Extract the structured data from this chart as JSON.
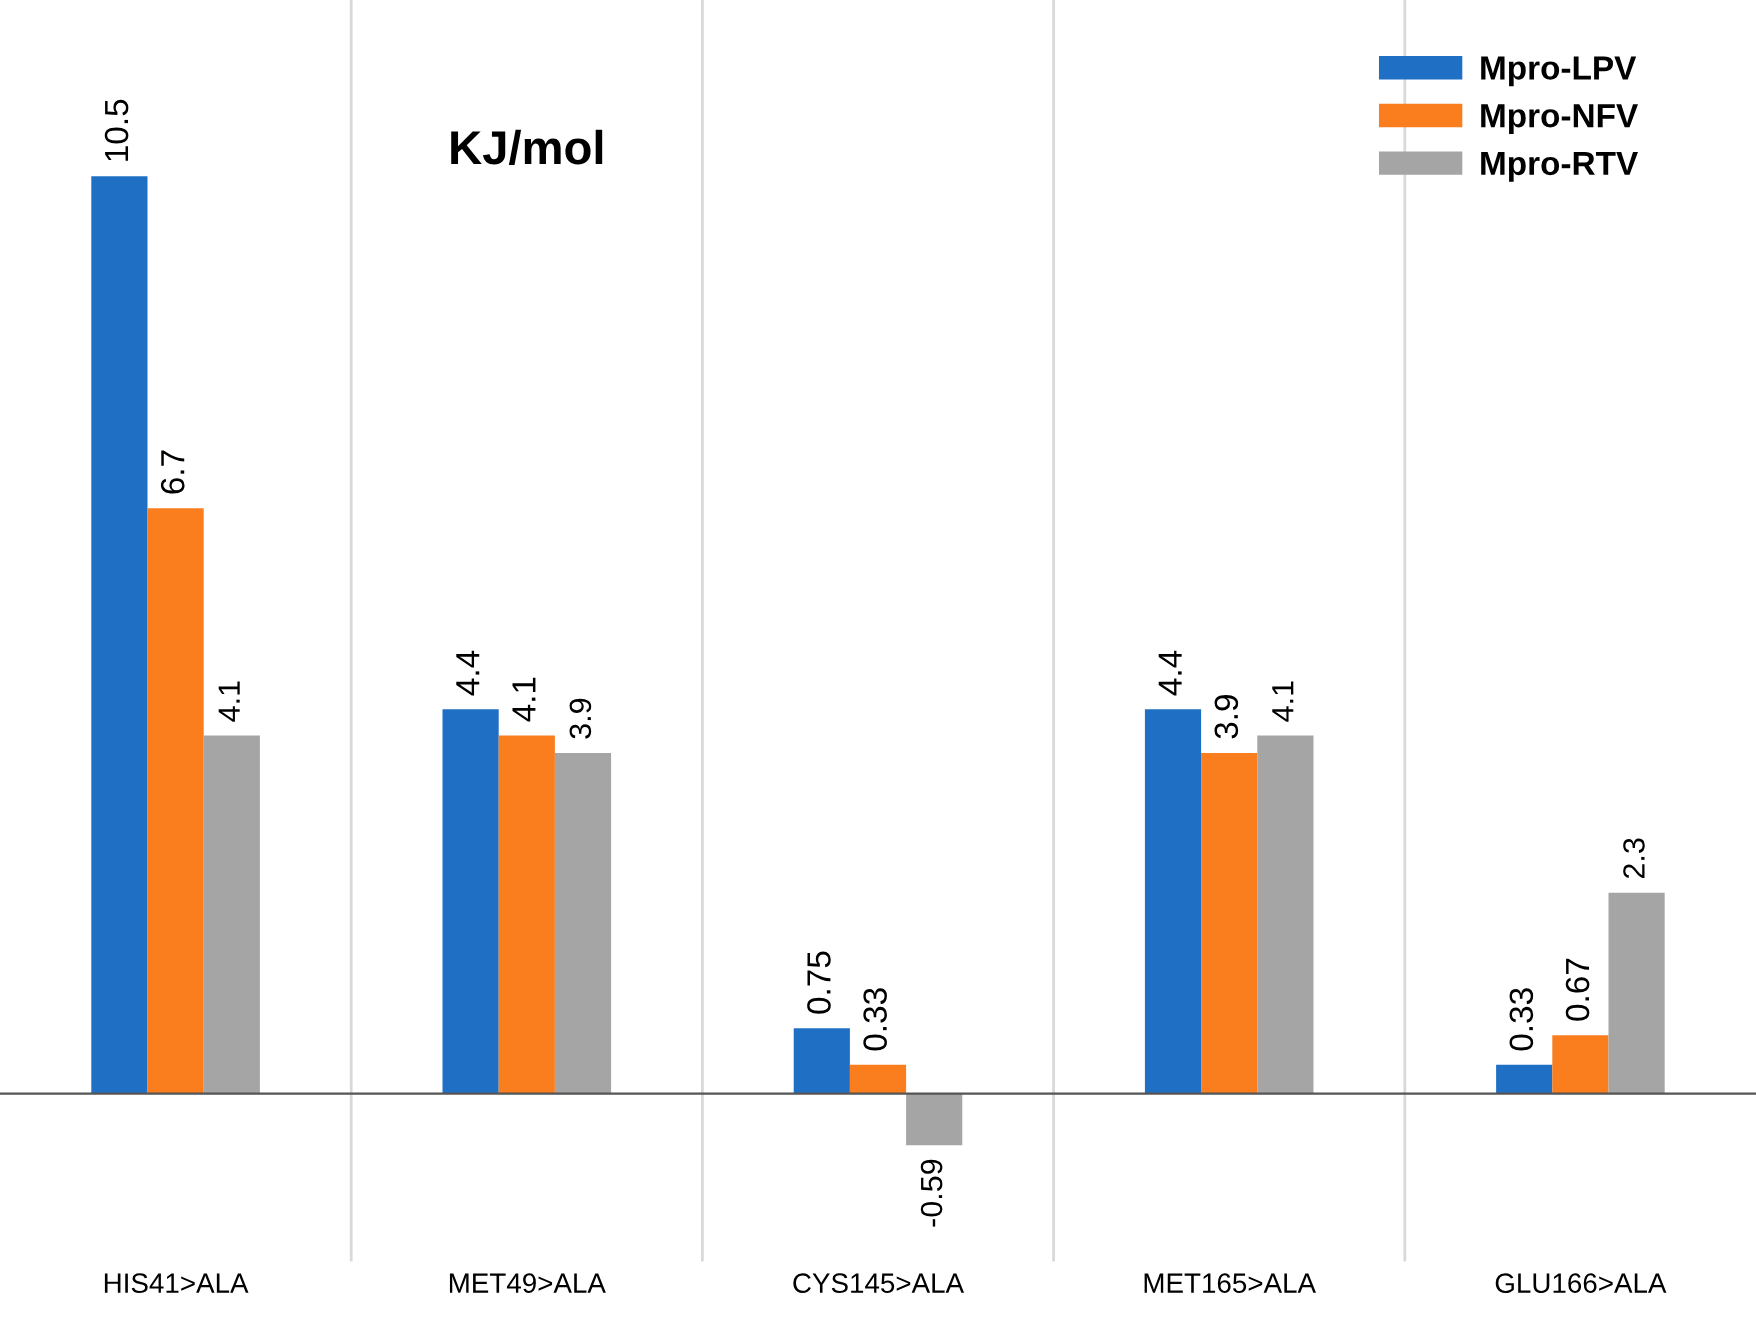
{
  "chart_data": {
    "type": "bar",
    "categories": [
      "HIS41>ALA",
      "MET49>ALA",
      "CYS145>ALA",
      "MET165>ALA",
      "GLU166>ALA"
    ],
    "series": [
      {
        "name": "Mpro-LPV",
        "color": "#1f6fc5",
        "values": [
          10.5,
          4.4,
          0.75,
          4.4,
          0.33
        ]
      },
      {
        "name": "Mpro-NFV",
        "color": "#fa7d1e",
        "values": [
          6.7,
          4.1,
          0.33,
          3.9,
          0.67
        ]
      },
      {
        "name": "Mpro-RTV",
        "color": "#a5a5a5",
        "values": [
          4.1,
          3.9,
          -0.59,
          4.1,
          2.3
        ]
      }
    ],
    "annotations": [
      "KJ/mol"
    ],
    "data_labels": true,
    "grid": "x",
    "legend": "top right",
    "tick_labels": "x"
  }
}
